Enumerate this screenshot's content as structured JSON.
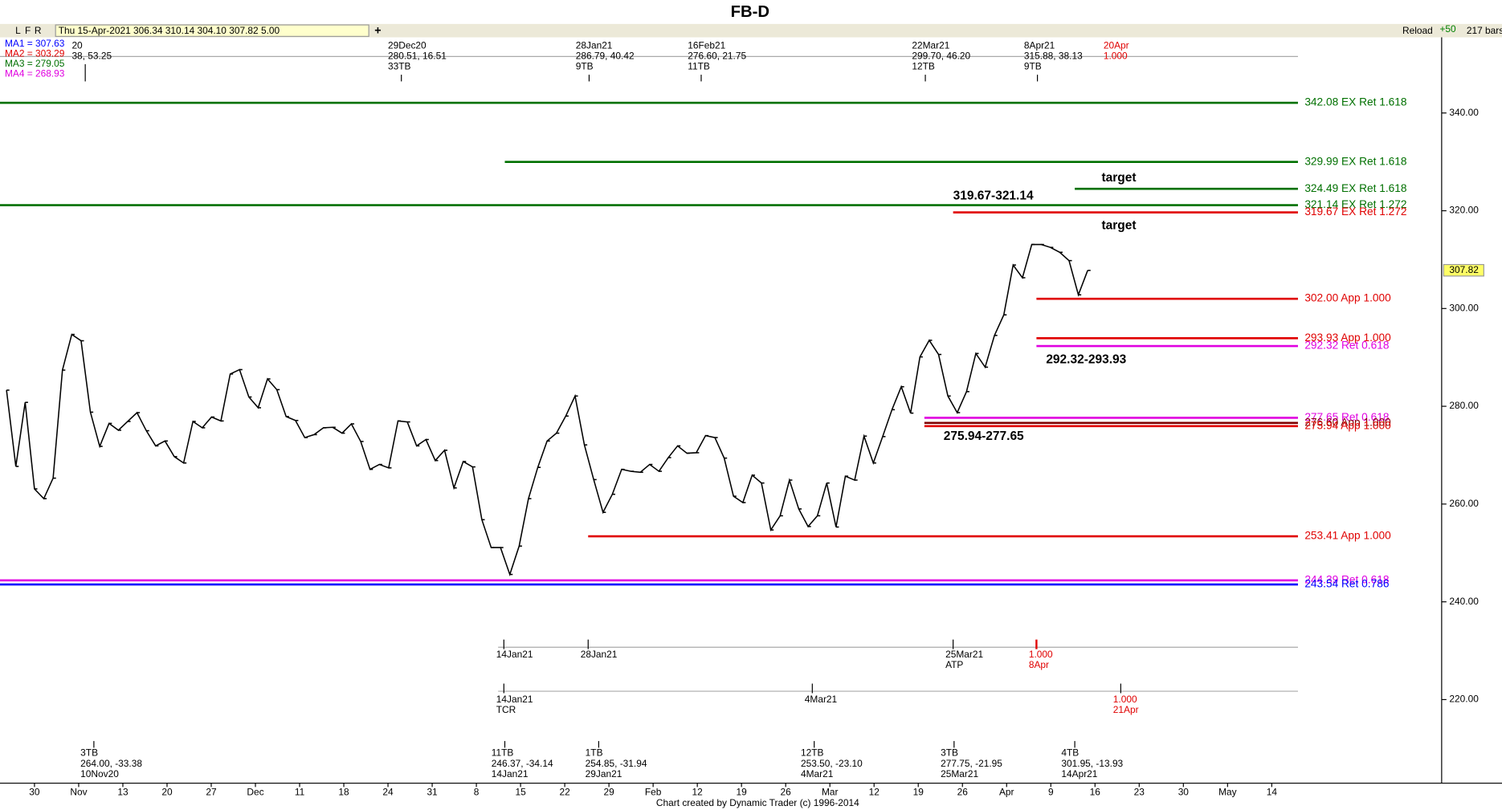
{
  "title": "FB-D",
  "toolbar": {
    "buttons": [
      "L",
      "F",
      "R"
    ],
    "quote": "Thu 15-Apr-2021   306.34   310.14   304.10   307.82   5.00",
    "reload": "Reload",
    "plus": "+50",
    "bars": "217 bars"
  },
  "legend": [
    {
      "text": "MA1 = 307.63",
      "color": "#0000ff"
    },
    {
      "text": "MA2 = 303.29",
      "color": "#e00000"
    },
    {
      "text": "MA3 = 279.05",
      "color": "#007000"
    },
    {
      "text": "MA4 = 268.93",
      "color": "#e000e0"
    }
  ],
  "chart_data": {
    "type": "line",
    "series": [
      {
        "color": "#000000",
        "values": [
          283.3,
          267.7,
          280.8,
          263.1,
          261.1,
          265.3,
          287.4,
          294.7,
          293.4,
          278.8,
          271.8,
          276.5,
          275.1,
          276.9,
          278.7,
          275.0,
          271.9,
          272.9,
          269.7,
          268.4,
          276.9,
          275.6,
          277.8,
          277.0,
          286.6,
          287.5,
          281.9,
          279.7,
          285.6,
          283.4,
          277.9,
          277.1,
          273.6,
          274.2,
          275.6,
          275.7,
          274.5,
          276.4,
          272.8,
          267.1,
          268.1,
          267.4,
          277.0,
          276.8,
          271.9,
          273.2,
          268.9,
          271.0,
          263.3,
          268.7,
          267.6,
          256.8,
          251.1,
          251.1,
          245.6,
          251.4,
          261.1,
          267.5,
          272.9,
          274.5,
          278.0,
          282.1,
          272.1,
          265.0,
          258.3,
          262.0,
          267.1,
          266.7,
          266.5,
          268.1,
          266.7,
          269.5,
          271.9,
          270.4,
          270.5,
          274.0,
          273.6,
          269.4,
          261.6,
          260.3,
          265.9,
          264.3,
          254.7,
          257.6,
          264.9,
          259.0,
          255.4,
          257.6,
          264.3,
          255.3,
          265.7,
          264.9,
          273.9,
          268.4,
          273.8,
          279.3,
          284.0,
          278.6,
          290.1,
          293.5,
          290.6,
          282.1,
          278.7,
          283.0,
          290.8,
          288.0,
          294.5,
          298.7,
          308.9,
          306.3,
          313.1,
          313.1,
          312.5,
          311.5,
          309.8,
          302.8,
          307.8
        ]
      }
    ],
    "ylim": [
      202.9,
      358.8
    ],
    "yticks": [
      {
        "value": 220,
        "label": "220.00"
      },
      {
        "value": 240,
        "label": "240.00"
      },
      {
        "value": 260,
        "label": "260.00"
      },
      {
        "value": 280,
        "label": "280.00"
      },
      {
        "value": 300,
        "label": "300.00"
      },
      {
        "value": 320,
        "label": "320.00"
      },
      {
        "value": 340,
        "label": "340.00"
      }
    ],
    "xticks": [
      "30",
      "Nov",
      "13",
      "20",
      "27",
      "Dec",
      "11",
      "18",
      "24",
      "31",
      "8",
      "15",
      "22",
      "29",
      "Feb",
      "12",
      "19",
      "26",
      "Mar",
      "12",
      "19",
      "26",
      "Apr",
      "9",
      "16",
      "23",
      "30",
      "May",
      "14"
    ],
    "last_price": {
      "value": 307.82,
      "label": "307.82"
    },
    "levels": [
      {
        "value": 342.08,
        "label": "342.08 EX Ret 1.618",
        "color": "#007000"
      },
      {
        "value": 329.99,
        "label": "329.99 EX Ret 1.618",
        "color": "#007000"
      },
      {
        "value": 324.49,
        "label": "324.49 EX Ret 1.618",
        "color": "#007000"
      },
      {
        "value": 321.14,
        "label": "321.14 EX Ret 1.272",
        "color": "#007000"
      },
      {
        "value": 319.67,
        "label": "319.67 EX Ret 1.272",
        "color": "#e00000"
      },
      {
        "value": 302.0,
        "label": "302.00 App 1.000",
        "color": "#e00000"
      },
      {
        "value": 293.93,
        "label": "293.93 App 1.000",
        "color": "#e00000"
      },
      {
        "value": 292.32,
        "label": "292.32 Ret 0.618",
        "color": "#e000e0"
      },
      {
        "value": 277.65,
        "label": "277.65 Ret 0.618",
        "color": "#e000e0"
      },
      {
        "value": 276.6,
        "label": "276.60 App 1.000",
        "color": "#800000"
      },
      {
        "value": 275.94,
        "label": "275.94 App 1.000",
        "color": "#e00000"
      },
      {
        "value": 253.41,
        "label": "253.41 App 1.000",
        "color": "#e00000"
      },
      {
        "value": 244.39,
        "label": "244.39 Ret 0.618",
        "color": "#e000e0"
      },
      {
        "value": 243.54,
        "label": "243.54 Ret 0.786",
        "color": "#0000ff"
      }
    ],
    "annotations": [
      "319.67-321.14",
      "target",
      "target",
      "292.32-293.93",
      "275.94-277.65"
    ]
  },
  "pivots_top": [
    {
      "lines": [
        "20",
        "38, 53.25"
      ]
    },
    {
      "lines": [
        "29Dec20",
        "280.51, 16.51",
        "33TB"
      ]
    },
    {
      "lines": [
        "28Jan21",
        "286.79, 40.42",
        "9TB"
      ]
    },
    {
      "lines": [
        "16Feb21",
        "276.60, 21.75",
        "11TB"
      ]
    },
    {
      "lines": [
        "22Mar21",
        "299.70, 46.20",
        "12TB"
      ]
    },
    {
      "lines": [
        "8Apr21",
        "315.88, 38.13",
        "9TB"
      ]
    },
    {
      "lines": [
        "20Apr",
        "1.000"
      ]
    }
  ],
  "pivots_mid1": [
    {
      "lines": [
        "14Jan21"
      ]
    },
    {
      "lines": [
        "28Jan21"
      ]
    },
    {
      "lines": [
        "25Mar21",
        "ATP"
      ]
    },
    {
      "lines": [
        "1.000",
        "8Apr"
      ]
    }
  ],
  "pivots_mid2": [
    {
      "lines": [
        "14Jan21",
        "TCR"
      ]
    },
    {
      "lines": [
        "4Mar21"
      ]
    },
    {
      "lines": [
        "1.000",
        "21Apr"
      ]
    }
  ],
  "pivots_bottom": [
    {
      "lines": [
        "3TB",
        "264.00, -33.38",
        "10Nov20"
      ]
    },
    {
      "lines": [
        "11TB",
        "246.37, -34.14",
        "14Jan21"
      ]
    },
    {
      "lines": [
        "1TB",
        "254.85, -31.94",
        "29Jan21"
      ]
    },
    {
      "lines": [
        "12TB",
        "253.50, -23.10",
        "4Mar21"
      ]
    },
    {
      "lines": [
        "3TB",
        "277.75, -21.95",
        "25Mar21"
      ]
    },
    {
      "lines": [
        "4TB",
        "301.95, -13.93",
        "14Apr21"
      ]
    }
  ],
  "footer": "Chart created by Dynamic Trader  (c)  1996-2014"
}
